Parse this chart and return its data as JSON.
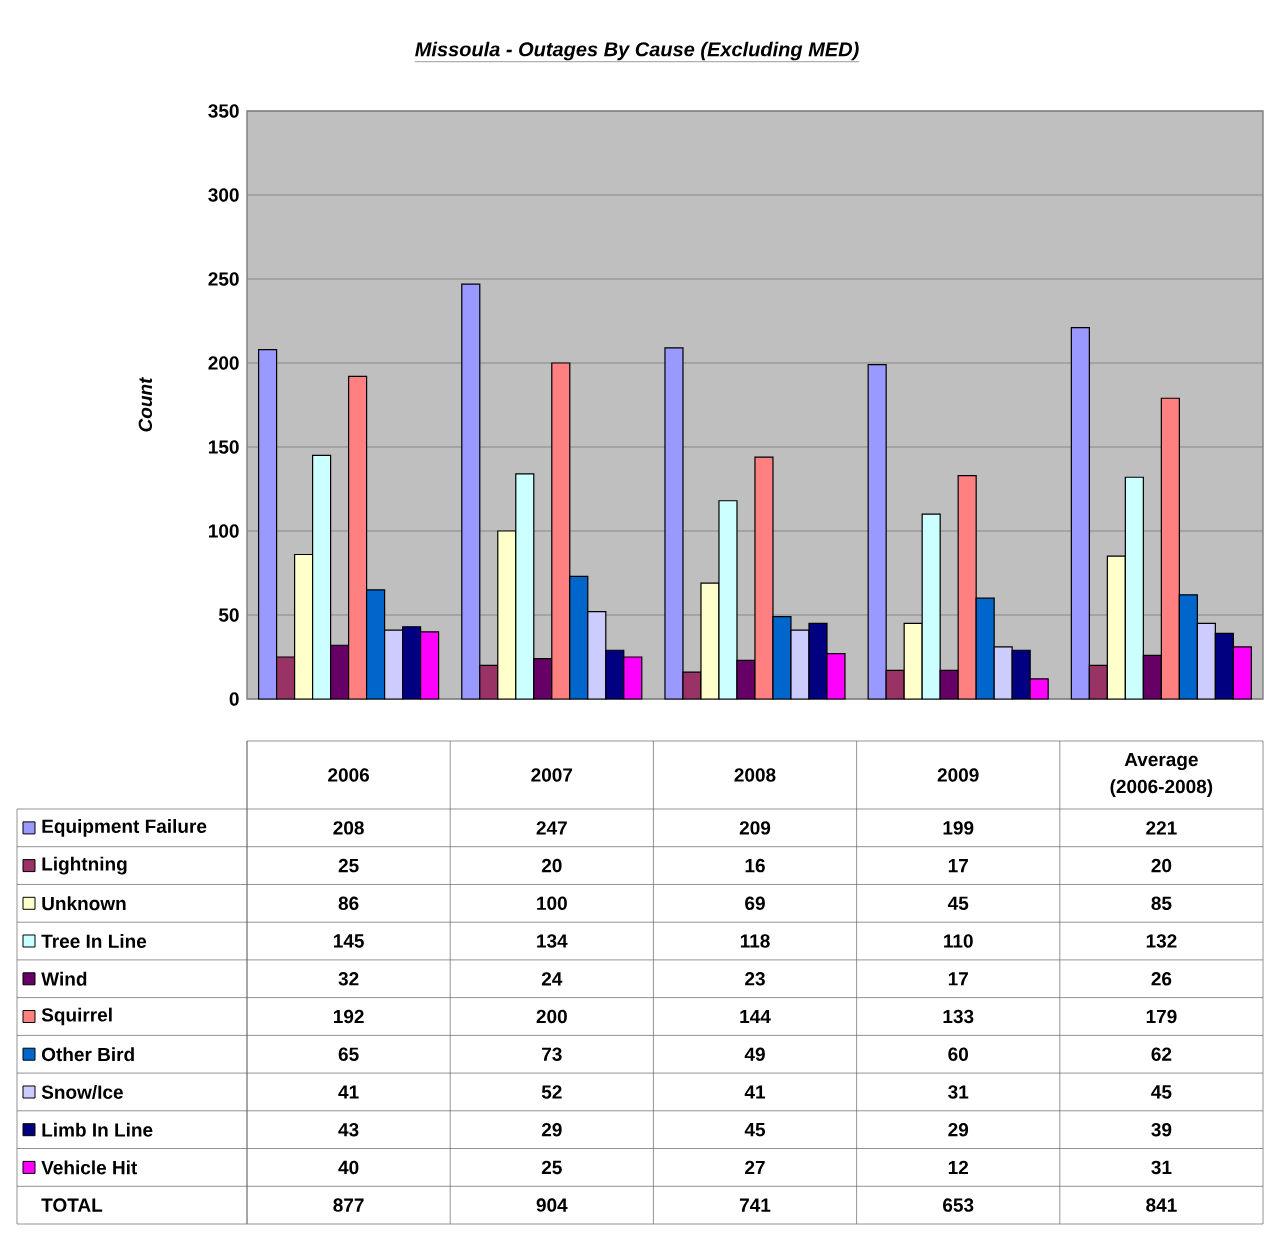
{
  "chart_data": {
    "type": "bar",
    "title": "Missoula - Outages By Cause (Excluding MED)",
    "ylabel": "Count",
    "categories": [
      "2006",
      "2007",
      "2008",
      "2009",
      "Average (2006-2008)"
    ],
    "series": [
      {
        "name": "Equipment Failure",
        "color": "#9999ff",
        "values": [
          208,
          247,
          209,
          199,
          221
        ]
      },
      {
        "name": "Lightning",
        "color": "#993366",
        "values": [
          25,
          20,
          16,
          17,
          20
        ]
      },
      {
        "name": "Unknown",
        "color": "#ffffcc",
        "values": [
          86,
          100,
          69,
          45,
          85
        ]
      },
      {
        "name": "Tree In Line",
        "color": "#ccffff",
        "values": [
          145,
          134,
          118,
          110,
          132
        ]
      },
      {
        "name": "Wind",
        "color": "#660066",
        "values": [
          32,
          24,
          23,
          17,
          26
        ]
      },
      {
        "name": "Squirrel",
        "color": "#ff8080",
        "values": [
          192,
          200,
          144,
          133,
          179
        ]
      },
      {
        "name": "Other Bird",
        "color": "#0066cc",
        "values": [
          65,
          73,
          49,
          60,
          62
        ]
      },
      {
        "name": "Snow/Ice",
        "color": "#ccccff",
        "values": [
          41,
          52,
          41,
          31,
          45
        ]
      },
      {
        "name": "Limb In Line",
        "color": "#000080",
        "values": [
          43,
          29,
          45,
          29,
          39
        ]
      },
      {
        "name": "Vehicle Hit",
        "color": "#ff00ff",
        "values": [
          40,
          25,
          27,
          12,
          31
        ]
      }
    ],
    "annotations": [
      "TOTAL",
      "877",
      "904",
      "741",
      "653",
      "841"
    ],
    "ylim": [
      0,
      350
    ],
    "yticks": [
      0,
      50,
      100,
      150,
      200,
      250,
      300,
      350
    ],
    "grid": "y",
    "data_labels": true,
    "legend": "bottom left"
  }
}
